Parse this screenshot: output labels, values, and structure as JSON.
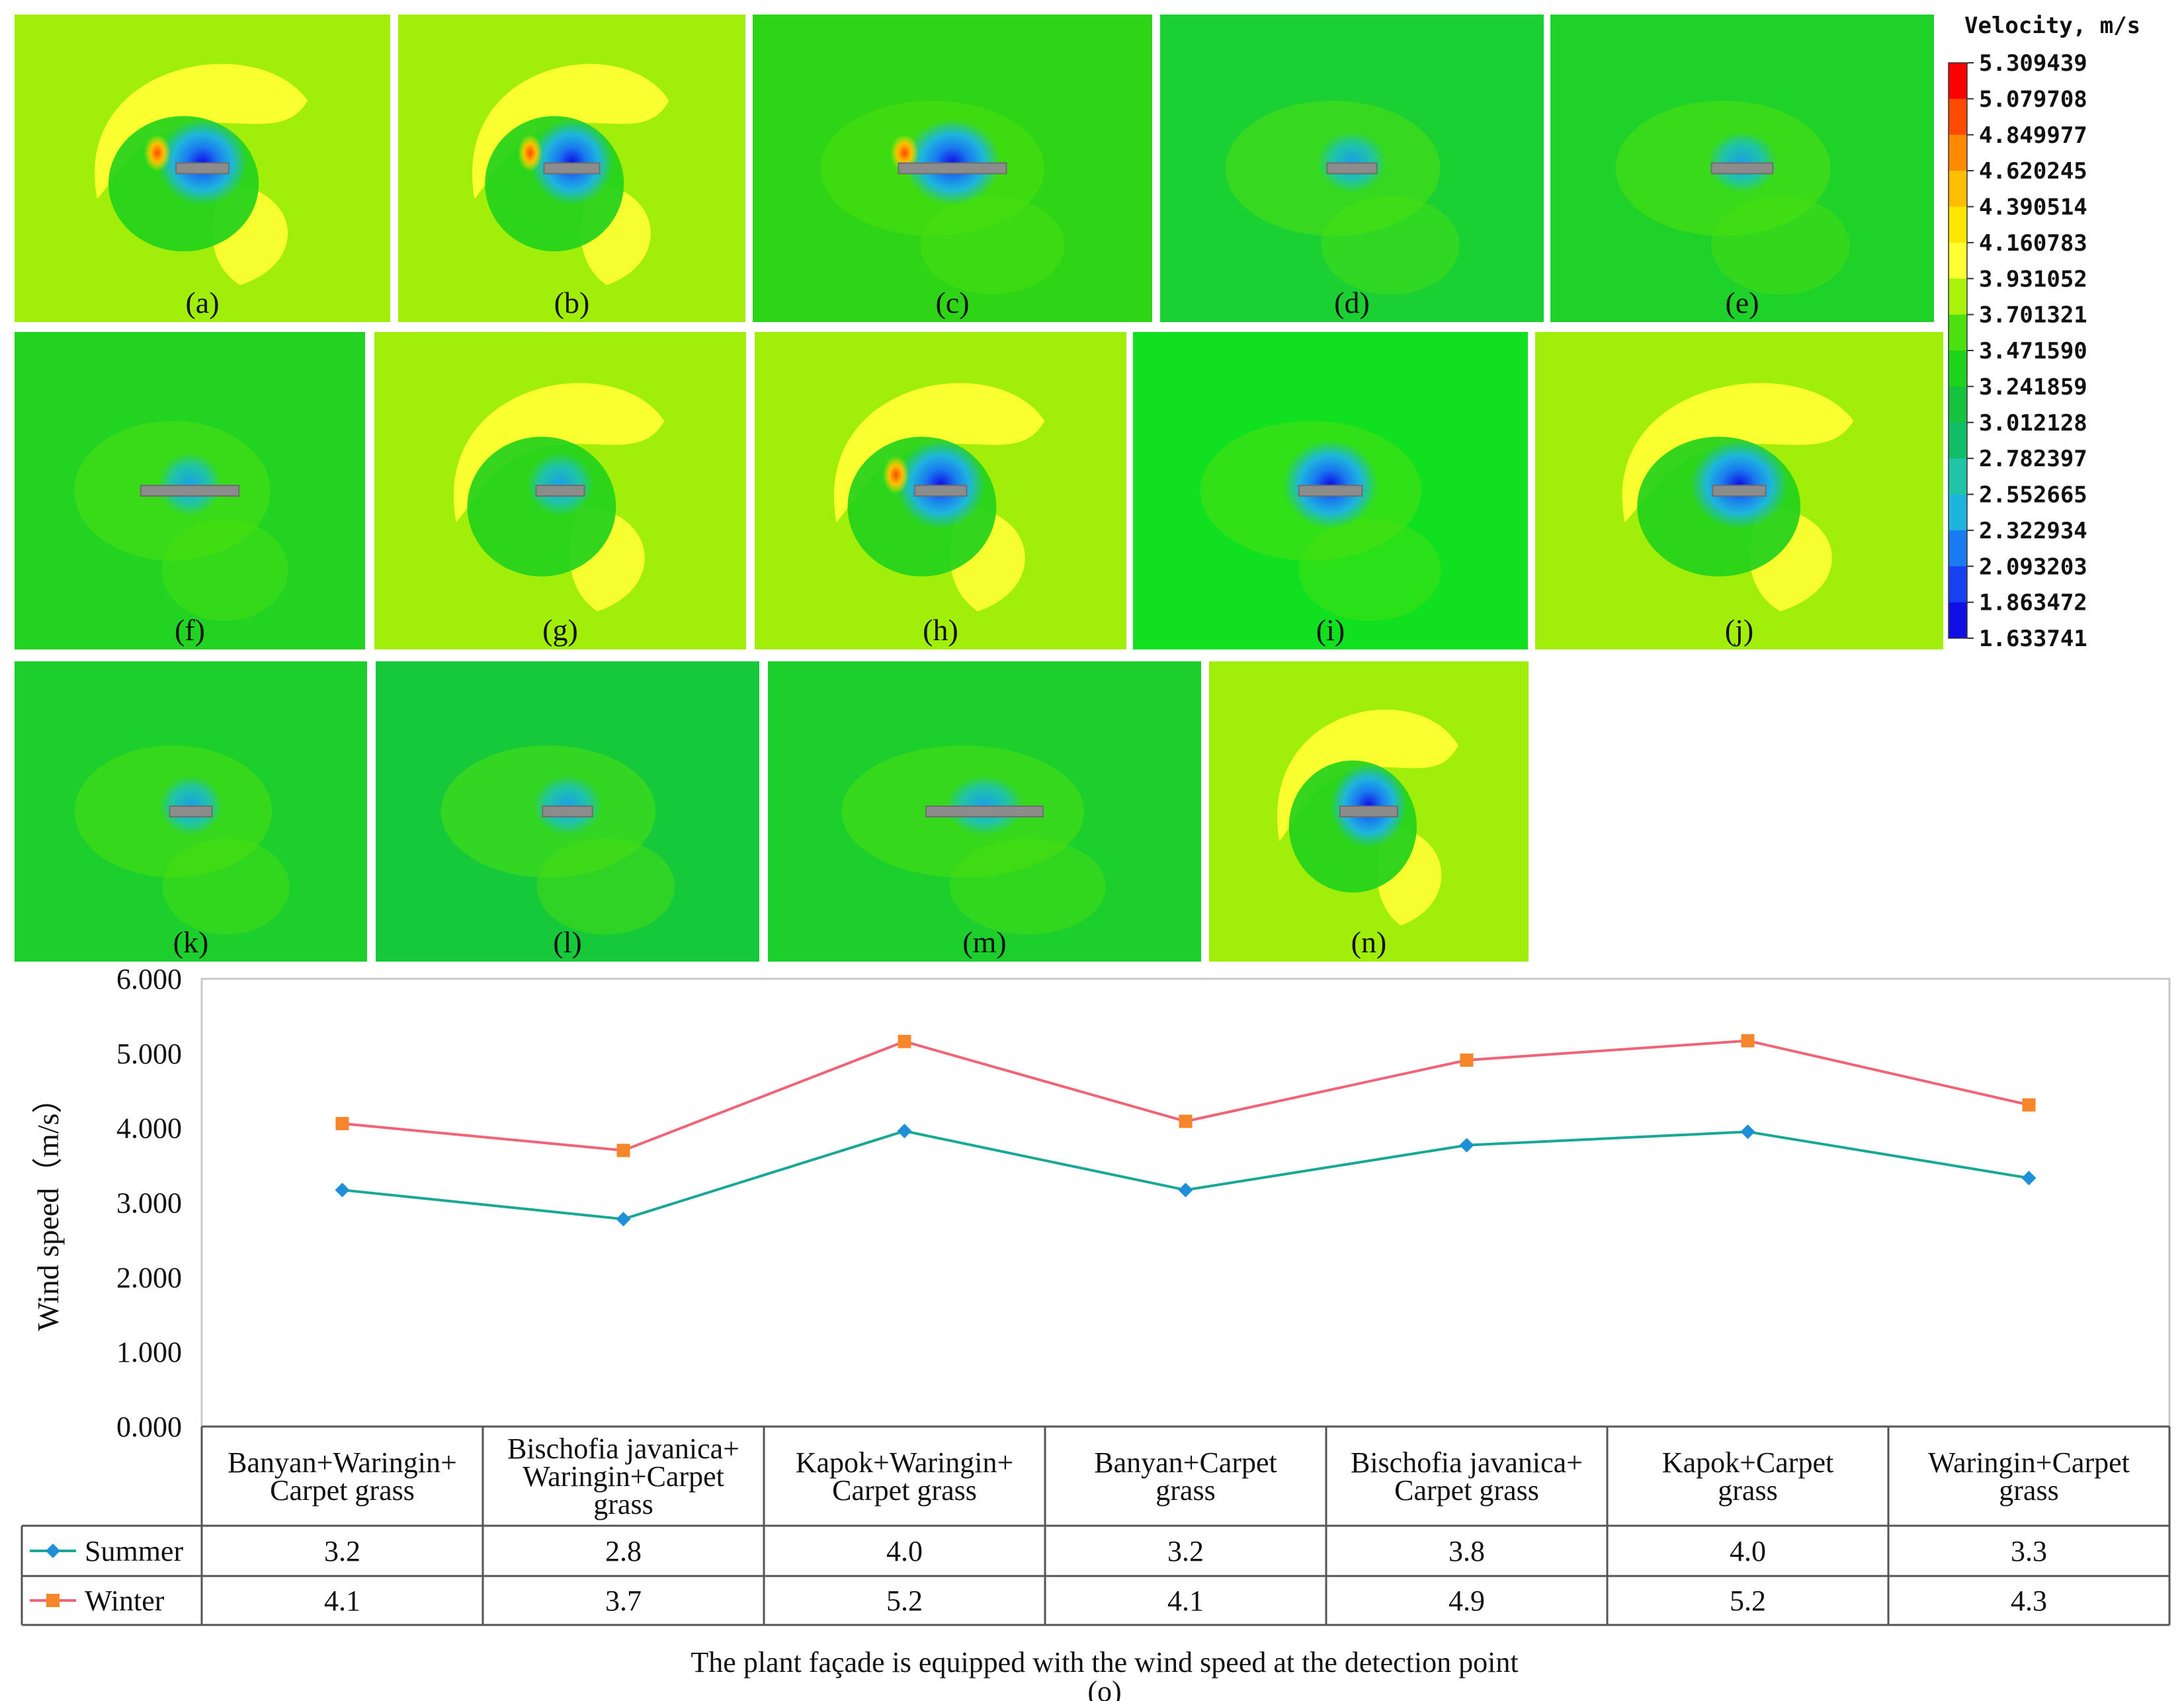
{
  "colorbar": {
    "title": "Velocity, m/s",
    "levels": [
      "5.309439",
      "5.079708",
      "4.849977",
      "4.620245",
      "4.390514",
      "4.160783",
      "3.931052",
      "3.701321",
      "3.471590",
      "3.241859",
      "3.012128",
      "2.782397",
      "2.552665",
      "2.322934",
      "2.093203",
      "1.863472",
      "1.633741"
    ],
    "colors": [
      "#ff0000",
      "#ff4a00",
      "#ff8a00",
      "#ffbe00",
      "#ffe600",
      "#ffff33",
      "#a9f20a",
      "#4ce00f",
      "#1fd21c",
      "#16c33e",
      "#12bd69",
      "#20c4a6",
      "#1eb5dd",
      "#1a7bf0",
      "#1640f0",
      "#1010e6"
    ]
  },
  "panels": [
    {
      "label": "(a)",
      "bg": "#a2ee0b"
    },
    {
      "label": "(b)",
      "bg": "#a2ee0b"
    },
    {
      "label": "(c)",
      "bg": "#2ed516"
    },
    {
      "label": "(d)",
      "bg": "#1bd033"
    },
    {
      "label": "(e)",
      "bg": "#1fd229"
    },
    {
      "label": "(f)",
      "bg": "#22d322"
    },
    {
      "label": "(g)",
      "bg": "#a2ee0b"
    },
    {
      "label": "(h)",
      "bg": "#a2ee0b"
    },
    {
      "label": "(i)",
      "bg": "#10e020"
    },
    {
      "label": "(j)",
      "bg": "#a2ee0b"
    },
    {
      "label": "(k)",
      "bg": "#1ccf2c"
    },
    {
      "label": "(l)",
      "bg": "#16c93a"
    },
    {
      "label": "(m)",
      "bg": "#1ccf2c"
    },
    {
      "label": "(n)",
      "bg": "#a2ee0b"
    }
  ],
  "chart_data": {
    "type": "line",
    "title": "The plant façade is equipped with the wind speed at the detection point",
    "sublabel": "(o)",
    "ylabel": "Wind speed（m/s）",
    "ylim": [
      0,
      6
    ],
    "yticks": [
      "6.000",
      "5.000",
      "4.000",
      "3.000",
      "2.000",
      "1.000",
      "0.000"
    ],
    "ytick_values": [
      6,
      5,
      4,
      3,
      2,
      1,
      0
    ],
    "categories": [
      [
        "Banyan+Waringin+",
        "Carpet grass"
      ],
      [
        "Bischofia javanica+",
        "Waringin+Carpet",
        "grass"
      ],
      [
        "Kapok+Waringin+",
        "Carpet grass"
      ],
      [
        "Banyan+Carpet",
        "grass"
      ],
      [
        "Bischofia javanica+",
        "Carpet grass"
      ],
      [
        "Kapok+Carpet",
        "grass"
      ],
      [
        "Waringin+Carpet",
        "grass"
      ]
    ],
    "series": [
      {
        "name": "Summer",
        "color": "#1aa896",
        "marker": "diamond",
        "marker_color": "#1e90d8",
        "values": [
          3.17,
          2.78,
          3.96,
          3.17,
          3.77,
          3.95,
          3.33
        ],
        "labels": [
          "3.2",
          "2.8",
          "4.0",
          "3.2",
          "3.8",
          "4.0",
          "3.3"
        ]
      },
      {
        "name": "Winter",
        "color": "#f06478",
        "marker": "square",
        "marker_color": "#f7862a",
        "values": [
          4.06,
          3.7,
          5.16,
          4.09,
          4.91,
          5.17,
          4.31
        ],
        "labels": [
          "4.1",
          "3.7",
          "5.2",
          "4.1",
          "4.9",
          "5.2",
          "4.3"
        ]
      }
    ]
  }
}
